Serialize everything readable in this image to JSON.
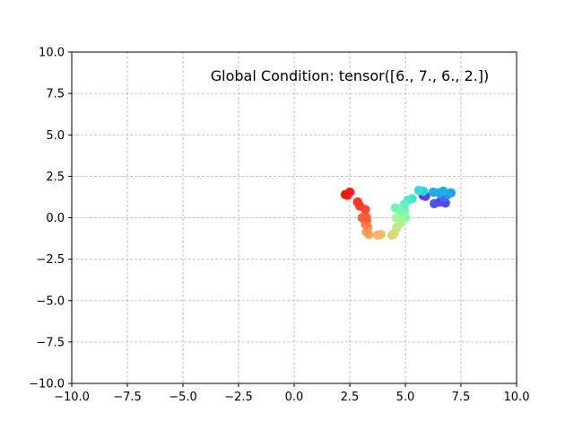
{
  "chart_data": {
    "type": "scatter",
    "title": "",
    "xlabel": "",
    "ylabel": "",
    "xlim": [
      -10,
      10
    ],
    "ylim": [
      -10,
      10
    ],
    "grid": true,
    "grid_style": "dashed",
    "annotation": "Global Condition: tensor([6., 7., 6., 2.])",
    "x_ticks": [
      -10.0,
      -7.5,
      -5.0,
      -2.5,
      0.0,
      2.5,
      5.0,
      7.5,
      10.0
    ],
    "y_ticks": [
      -10.0,
      -7.5,
      -5.0,
      -2.5,
      0.0,
      2.5,
      5.0,
      7.5,
      10.0
    ],
    "x_tick_labels": [
      "−10.0",
      "−7.5",
      "−5.0",
      "−2.5",
      "0.0",
      "2.5",
      "5.0",
      "7.5",
      "10.0"
    ],
    "y_tick_labels": [
      "−10.0",
      "−7.5",
      "−5.0",
      "−2.5",
      "0.0",
      "2.5",
      "5.0",
      "7.5",
      "10.0"
    ],
    "colormap": "rainbow",
    "points": [
      {
        "x": 5.8,
        "y": 1.35,
        "color": "#6a2cf5"
      },
      {
        "x": 5.9,
        "y": 1.3,
        "color": "#5e3cf6"
      },
      {
        "x": 6.3,
        "y": 0.85,
        "color": "#4f54f8"
      },
      {
        "x": 6.55,
        "y": 0.95,
        "color": "#5a44f6"
      },
      {
        "x": 6.8,
        "y": 0.9,
        "color": "#5247f7"
      },
      {
        "x": 6.75,
        "y": 1.2,
        "color": "#4466fa"
      },
      {
        "x": 6.9,
        "y": 1.4,
        "color": "#2e8cf0"
      },
      {
        "x": 7.05,
        "y": 1.5,
        "color": "#22a3ea"
      },
      {
        "x": 6.7,
        "y": 1.6,
        "color": "#18b2e4"
      },
      {
        "x": 6.5,
        "y": 1.5,
        "color": "#1cb0e6"
      },
      {
        "x": 6.25,
        "y": 1.55,
        "color": "#20aee8"
      },
      {
        "x": 5.8,
        "y": 1.6,
        "color": "#2ad2df"
      },
      {
        "x": 5.6,
        "y": 1.65,
        "color": "#3adcd8"
      },
      {
        "x": 5.3,
        "y": 1.15,
        "color": "#44e4d0"
      },
      {
        "x": 5.1,
        "y": 1.05,
        "color": "#50eac8"
      },
      {
        "x": 4.95,
        "y": 0.8,
        "color": "#5ef0c0"
      },
      {
        "x": 4.95,
        "y": 0.45,
        "color": "#6cf4b8"
      },
      {
        "x": 4.55,
        "y": 0.6,
        "color": "#70f4b5"
      },
      {
        "x": 4.8,
        "y": 0.35,
        "color": "#7af6ae"
      },
      {
        "x": 5.0,
        "y": 0.0,
        "color": "#8cf8a4"
      },
      {
        "x": 4.8,
        "y": -0.1,
        "color": "#98f89c"
      },
      {
        "x": 4.6,
        "y": 0.0,
        "color": "#a0f896"
      },
      {
        "x": 4.75,
        "y": -0.35,
        "color": "#acf68e"
      },
      {
        "x": 4.6,
        "y": -0.6,
        "color": "#bcee88"
      },
      {
        "x": 4.5,
        "y": -0.95,
        "color": "#cee47e"
      },
      {
        "x": 4.4,
        "y": -1.05,
        "color": "#dcd876"
      },
      {
        "x": 3.9,
        "y": -1.0,
        "color": "#eac46c"
      },
      {
        "x": 3.75,
        "y": -1.05,
        "color": "#f4b664"
      },
      {
        "x": 3.35,
        "y": -1.0,
        "color": "#f8a85c"
      },
      {
        "x": 3.25,
        "y": -0.85,
        "color": "#fa9a54"
      },
      {
        "x": 3.3,
        "y": -0.55,
        "color": "#fc8c4c"
      },
      {
        "x": 3.2,
        "y": -0.4,
        "color": "#fc8046"
      },
      {
        "x": 3.25,
        "y": -0.15,
        "color": "#fe7240"
      },
      {
        "x": 3.05,
        "y": 0.0,
        "color": "#fe6438"
      },
      {
        "x": 3.25,
        "y": 0.0,
        "color": "#fe5a34"
      },
      {
        "x": 3.2,
        "y": 0.5,
        "color": "#ff4a2c"
      },
      {
        "x": 2.95,
        "y": 0.7,
        "color": "#ff3e26"
      },
      {
        "x": 2.85,
        "y": 0.95,
        "color": "#ff3422"
      },
      {
        "x": 2.4,
        "y": 1.35,
        "color": "#ff2818"
      },
      {
        "x": 2.5,
        "y": 1.55,
        "color": "#ff1e12"
      },
      {
        "x": 2.3,
        "y": 1.4,
        "color": "#ff140c"
      }
    ],
    "colors": {
      "axes": "#000000",
      "grid": "#b0b0b0",
      "background": "#ffffff"
    }
  }
}
